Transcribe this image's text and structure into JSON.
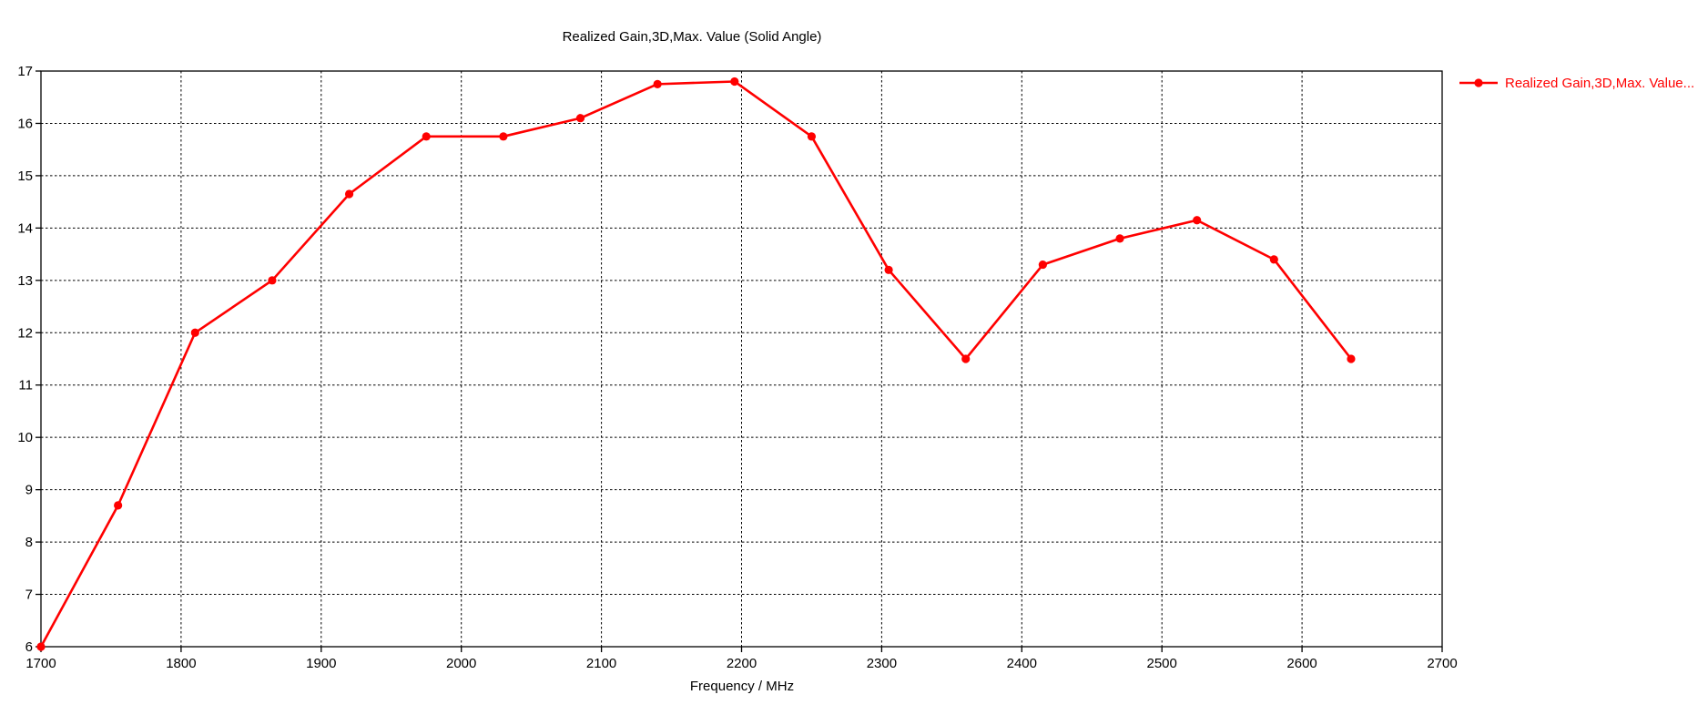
{
  "chart_data": {
    "type": "line",
    "title": "Realized Gain,3D,Max. Value (Solid Angle)",
    "xlabel": "Frequency / MHz",
    "ylabel": "",
    "xlim": [
      1700,
      2700
    ],
    "ylim": [
      6,
      17
    ],
    "x_ticks": [
      1700,
      1800,
      1900,
      2000,
      2100,
      2200,
      2300,
      2400,
      2500,
      2600,
      2700
    ],
    "y_ticks": [
      6,
      7,
      8,
      9,
      10,
      11,
      12,
      13,
      14,
      15,
      16,
      17
    ],
    "grid": "dashed",
    "grid_color": "#000000",
    "axis_color": "#000000",
    "background": "#ffffff",
    "legend_position": "top-right-outside",
    "series": [
      {
        "name": "Realized Gain,3D,Max. Value...",
        "color": "#ff0000",
        "marker": "circle",
        "x": [
          1700,
          1755,
          1810,
          1865,
          1920,
          1975,
          2030,
          2085,
          2140,
          2195,
          2250,
          2305,
          2360,
          2415,
          2470,
          2525,
          2580,
          2635
        ],
        "y": [
          6.0,
          8.7,
          12.0,
          13.0,
          14.65,
          15.75,
          15.75,
          16.1,
          16.75,
          16.8,
          15.75,
          13.2,
          11.5,
          13.3,
          13.8,
          14.15,
          13.4,
          11.5
        ]
      }
    ]
  }
}
